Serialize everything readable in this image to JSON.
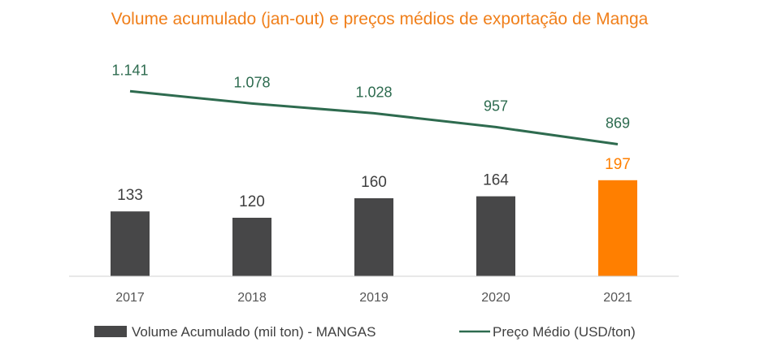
{
  "chart_data": {
    "type": "bar",
    "title": "Volume acumulado (jan-out) e preços médios de exportação de Manga",
    "categories": [
      "2017",
      "2018",
      "2019",
      "2020",
      "2021"
    ],
    "series": [
      {
        "name": "Volume Acumulado (mil ton) - MANGAS",
        "type": "bar",
        "values": [
          133,
          120,
          160,
          164,
          197
        ],
        "labels": [
          "133",
          "120",
          "160",
          "164",
          "197"
        ],
        "color": "#474748",
        "highlight_color": "#ff7f00",
        "highlight_index": 4
      },
      {
        "name": "Preço Médio (USD/ton)",
        "type": "line",
        "values": [
          1141,
          1078,
          1028,
          957,
          869
        ],
        "labels": [
          "1.141",
          "1.078",
          "1.028",
          "957",
          "869"
        ],
        "color": "#2e6b4f"
      }
    ],
    "grid": false,
    "legend_position": "bottom"
  }
}
